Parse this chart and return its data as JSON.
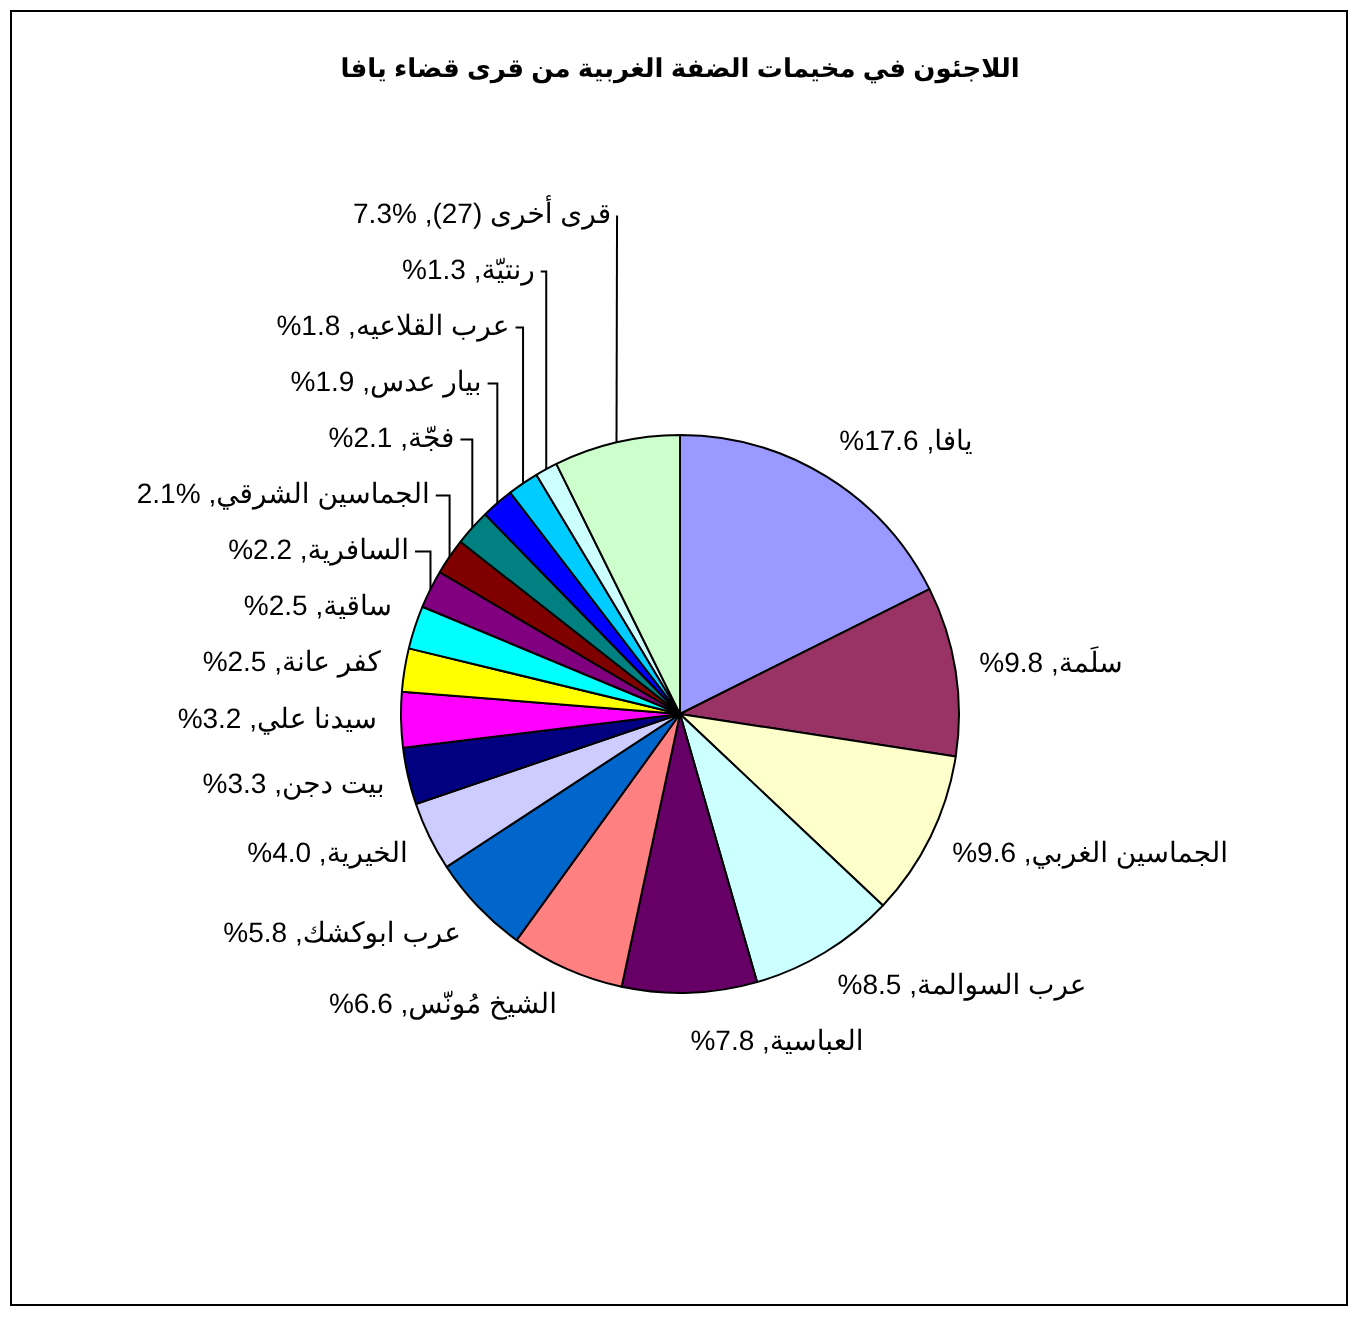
{
  "chart_data": {
    "type": "pie",
    "title": "اللاجئون في مخيمات الضفة الغربية من قرى قضاء يافا",
    "categories": [
      "يافا",
      "سلَمة",
      "الجماسين الغربي",
      "عرب السوالمة",
      "العباسية",
      "الشيخ مُونّس",
      "عرب ابوكشك",
      "الخيرية",
      "بيت دجن",
      "سيدنا علي",
      "كفر عانة",
      "ساقية",
      "السافرية",
      "الجماسين الشرقي",
      "فجّة",
      "بيار عدس",
      "عرب القلاعيه",
      "رنتيّة",
      "قرى أخرى (27)"
    ],
    "values": [
      17.6,
      9.8,
      9.6,
      8.5,
      7.8,
      6.6,
      5.8,
      4.0,
      3.3,
      3.2,
      2.5,
      2.5,
      2.2,
      2.1,
      2.1,
      1.9,
      1.8,
      1.3,
      7.3
    ],
    "colors": [
      "#9999ff",
      "#993366",
      "#ffffcc",
      "#ccffff",
      "#660066",
      "#ff8080",
      "#0066cc",
      "#ccccff",
      "#000080",
      "#ff00ff",
      "#ffff00",
      "#00ffff",
      "#800080",
      "#800000",
      "#008080",
      "#0000ff",
      "#00ccff",
      "#ccffff",
      "#ccffcc"
    ],
    "value_labels": [
      "%17.6",
      "%9.8",
      "%9.6",
      "%8.5",
      "%7.8",
      "%6.6",
      "%5.8",
      "%4.0",
      "%3.3",
      "%3.2",
      "%2.5",
      "%2.5",
      "%2.2",
      "2.1%",
      "%2.1",
      "%1.9",
      "%1.8",
      "%1.3",
      "7.3%"
    ],
    "legend": false
  }
}
